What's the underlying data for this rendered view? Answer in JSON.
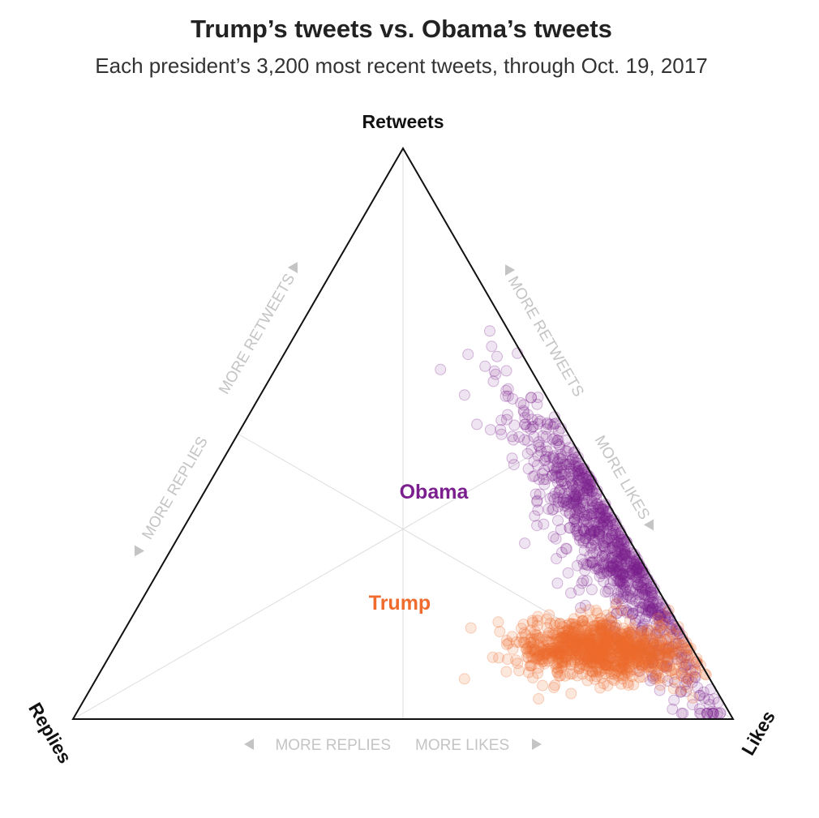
{
  "title": "Trump’s tweets vs. Obama’s tweets",
  "subtitle": "Each president’s 3,200 most recent tweets, through Oct. 19, 2017",
  "chart_data": {
    "type": "scatter",
    "subtype": "ternary",
    "axes": {
      "top": "Retweets",
      "left": "Replies",
      "right": "Likes"
    },
    "guide_labels": {
      "left_edge_retweets": "MORE RETWEETS",
      "left_edge_replies": "MORE REPLIES",
      "right_edge_retweets": "MORE RETWEETS",
      "right_edge_likes": "MORE LIKES",
      "bottom_replies": "MORE REPLIES",
      "bottom_likes": "MORE LIKES"
    },
    "grid": true,
    "series": [
      {
        "name": "Obama",
        "color": "#7b1f8f",
        "count": 3200,
        "center": {
          "retweets": 0.3,
          "replies": 0.06,
          "likes": 0.64
        },
        "spread": {
          "retweets": 0.13,
          "replies": 0.045
        }
      },
      {
        "name": "Trump",
        "color": "#ef6c2e",
        "count": 3200,
        "center": {
          "retweets": 0.12,
          "replies": 0.14,
          "likes": 0.74
        },
        "spread": {
          "retweets": 0.025,
          "replies": 0.065
        }
      }
    ]
  }
}
